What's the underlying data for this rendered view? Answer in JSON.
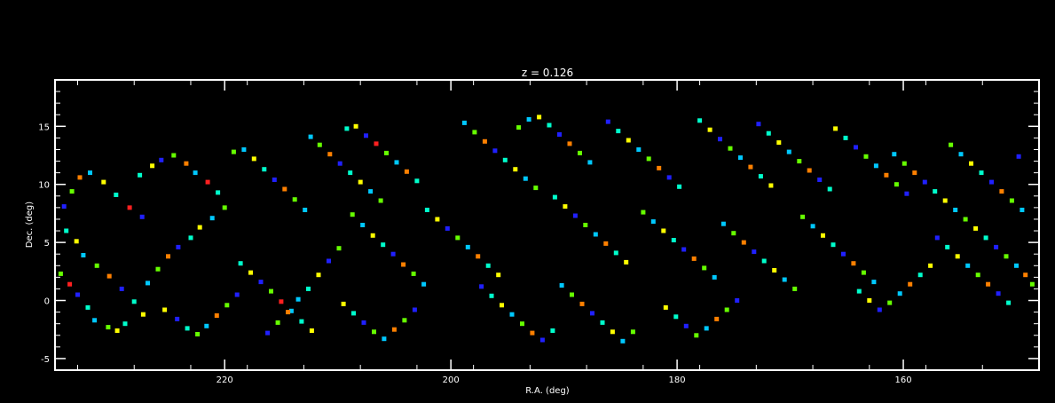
{
  "chart_data": {
    "type": "scatter",
    "title": "z = 0.126",
    "xlabel": "R.A. (deg)",
    "ylabel": "Dec. (deg)",
    "xlim": [
      235,
      148
    ],
    "ylim": [
      -6,
      19
    ],
    "x_ticks": [
      220,
      200,
      180,
      160
    ],
    "y_ticks": [
      -5,
      0,
      5,
      10,
      15
    ],
    "grid": false,
    "legend": "none",
    "background": "#000000",
    "axis_color": "#ffffff",
    "colormap": [
      "#2020ff",
      "#00c8ff",
      "#00ffcc",
      "#66ff00",
      "#ffff00",
      "#ff8000",
      "#ff2020",
      "#8000c0"
    ],
    "points": [
      [
        234.2,
        8.1,
        0
      ],
      [
        233.5,
        9.4,
        3
      ],
      [
        232.8,
        10.6,
        5
      ],
      [
        231.9,
        11.0,
        1
      ],
      [
        230.7,
        10.2,
        4
      ],
      [
        229.6,
        9.1,
        2
      ],
      [
        228.4,
        8.0,
        6
      ],
      [
        227.3,
        7.2,
        0
      ],
      [
        234.0,
        6.0,
        2
      ],
      [
        233.1,
        5.1,
        4
      ],
      [
        232.5,
        3.9,
        1
      ],
      [
        231.3,
        3.0,
        3
      ],
      [
        230.2,
        2.1,
        5
      ],
      [
        229.1,
        1.0,
        0
      ],
      [
        228.0,
        -0.1,
        2
      ],
      [
        227.2,
        -1.2,
        4
      ],
      [
        234.5,
        2.3,
        3
      ],
      [
        233.7,
        1.4,
        6
      ],
      [
        233.0,
        0.5,
        0
      ],
      [
        232.1,
        -0.6,
        2
      ],
      [
        231.5,
        -1.7,
        1
      ],
      [
        230.3,
        -2.3,
        3
      ],
      [
        229.5,
        -2.6,
        4
      ],
      [
        228.8,
        -2.0,
        2
      ],
      [
        226.8,
        1.5,
        1
      ],
      [
        225.9,
        2.7,
        3
      ],
      [
        225.0,
        3.8,
        5
      ],
      [
        224.1,
        4.6,
        0
      ],
      [
        223.0,
        5.4,
        2
      ],
      [
        222.2,
        6.3,
        4
      ],
      [
        221.1,
        7.1,
        1
      ],
      [
        220.0,
        8.0,
        3
      ],
      [
        227.5,
        10.8,
        2
      ],
      [
        226.4,
        11.6,
        4
      ],
      [
        225.6,
        12.1,
        0
      ],
      [
        224.5,
        12.5,
        3
      ],
      [
        223.4,
        11.8,
        5
      ],
      [
        222.6,
        11.0,
        1
      ],
      [
        221.5,
        10.2,
        6
      ],
      [
        220.6,
        9.3,
        2
      ],
      [
        225.3,
        -0.8,
        4
      ],
      [
        224.2,
        -1.6,
        0
      ],
      [
        223.3,
        -2.4,
        2
      ],
      [
        222.4,
        -2.9,
        3
      ],
      [
        221.6,
        -2.2,
        1
      ],
      [
        220.7,
        -1.3,
        5
      ],
      [
        219.8,
        -0.4,
        3
      ],
      [
        218.9,
        0.5,
        0
      ],
      [
        219.2,
        12.8,
        3
      ],
      [
        218.3,
        13.0,
        1
      ],
      [
        217.4,
        12.2,
        4
      ],
      [
        216.5,
        11.3,
        2
      ],
      [
        215.6,
        10.4,
        0
      ],
      [
        214.7,
        9.6,
        5
      ],
      [
        213.8,
        8.7,
        3
      ],
      [
        212.9,
        7.8,
        1
      ],
      [
        218.6,
        3.2,
        2
      ],
      [
        217.7,
        2.4,
        4
      ],
      [
        216.8,
        1.6,
        0
      ],
      [
        215.9,
        0.8,
        3
      ],
      [
        215.0,
        -0.1,
        6
      ],
      [
        214.1,
        -0.9,
        1
      ],
      [
        213.2,
        -1.8,
        2
      ],
      [
        212.3,
        -2.6,
        4
      ],
      [
        216.2,
        -2.8,
        0
      ],
      [
        215.3,
        -1.9,
        3
      ],
      [
        214.4,
        -1.0,
        5
      ],
      [
        213.5,
        0.1,
        1
      ],
      [
        212.6,
        1.0,
        2
      ],
      [
        211.7,
        2.2,
        4
      ],
      [
        210.8,
        3.4,
        0
      ],
      [
        209.9,
        4.5,
        3
      ],
      [
        212.4,
        14.1,
        1
      ],
      [
        211.6,
        13.4,
        3
      ],
      [
        210.7,
        12.6,
        5
      ],
      [
        209.8,
        11.8,
        0
      ],
      [
        208.9,
        11.0,
        2
      ],
      [
        208.0,
        10.2,
        4
      ],
      [
        207.1,
        9.4,
        1
      ],
      [
        206.2,
        8.6,
        3
      ],
      [
        209.2,
        14.8,
        2
      ],
      [
        208.4,
        15.0,
        4
      ],
      [
        207.5,
        14.2,
        0
      ],
      [
        206.6,
        13.5,
        6
      ],
      [
        205.7,
        12.7,
        3
      ],
      [
        204.8,
        11.9,
        1
      ],
      [
        203.9,
        11.1,
        5
      ],
      [
        203.0,
        10.3,
        2
      ],
      [
        208.7,
        7.4,
        3
      ],
      [
        207.8,
        6.5,
        1
      ],
      [
        206.9,
        5.6,
        4
      ],
      [
        206.0,
        4.8,
        2
      ],
      [
        205.1,
        4.0,
        0
      ],
      [
        204.2,
        3.1,
        5
      ],
      [
        203.3,
        2.3,
        3
      ],
      [
        202.4,
        1.4,
        1
      ],
      [
        209.5,
        -0.3,
        4
      ],
      [
        208.6,
        -1.1,
        2
      ],
      [
        207.7,
        -1.9,
        0
      ],
      [
        206.8,
        -2.7,
        3
      ],
      [
        205.9,
        -3.3,
        1
      ],
      [
        205.0,
        -2.5,
        5
      ],
      [
        204.1,
        -1.7,
        3
      ],
      [
        203.2,
        -0.8,
        0
      ],
      [
        202.1,
        7.8,
        2
      ],
      [
        201.2,
        7.0,
        4
      ],
      [
        200.3,
        6.2,
        0
      ],
      [
        199.4,
        5.4,
        3
      ],
      [
        198.5,
        4.6,
        1
      ],
      [
        197.6,
        3.8,
        5
      ],
      [
        196.7,
        3.0,
        2
      ],
      [
        195.8,
        2.2,
        4
      ],
      [
        198.8,
        15.3,
        1
      ],
      [
        197.9,
        14.5,
        3
      ],
      [
        197.0,
        13.7,
        5
      ],
      [
        196.1,
        12.9,
        0
      ],
      [
        195.2,
        12.1,
        2
      ],
      [
        194.3,
        11.3,
        4
      ],
      [
        193.4,
        10.5,
        1
      ],
      [
        192.5,
        9.7,
        3
      ],
      [
        197.3,
        1.2,
        0
      ],
      [
        196.4,
        0.4,
        2
      ],
      [
        195.5,
        -0.4,
        4
      ],
      [
        194.6,
        -1.2,
        1
      ],
      [
        193.7,
        -2.0,
        3
      ],
      [
        192.8,
        -2.8,
        5
      ],
      [
        191.9,
        -3.4,
        0
      ],
      [
        191.0,
        -2.6,
        2
      ],
      [
        194.0,
        14.9,
        3
      ],
      [
        193.1,
        15.6,
        1
      ],
      [
        192.2,
        15.8,
        4
      ],
      [
        191.3,
        15.1,
        2
      ],
      [
        190.4,
        14.3,
        0
      ],
      [
        189.5,
        13.5,
        5
      ],
      [
        188.6,
        12.7,
        3
      ],
      [
        187.7,
        11.9,
        1
      ],
      [
        190.8,
        8.9,
        2
      ],
      [
        189.9,
        8.1,
        4
      ],
      [
        189.0,
        7.3,
        0
      ],
      [
        188.1,
        6.5,
        3
      ],
      [
        187.2,
        5.7,
        1
      ],
      [
        186.3,
        4.9,
        5
      ],
      [
        185.4,
        4.1,
        2
      ],
      [
        184.5,
        3.3,
        4
      ],
      [
        190.2,
        1.3,
        1
      ],
      [
        189.3,
        0.5,
        3
      ],
      [
        188.4,
        -0.3,
        5
      ],
      [
        187.5,
        -1.1,
        0
      ],
      [
        186.6,
        -1.9,
        2
      ],
      [
        185.7,
        -2.7,
        4
      ],
      [
        184.8,
        -3.5,
        1
      ],
      [
        183.9,
        -2.7,
        3
      ],
      [
        186.1,
        15.4,
        0
      ],
      [
        185.2,
        14.6,
        2
      ],
      [
        184.3,
        13.8,
        4
      ],
      [
        183.4,
        13.0,
        1
      ],
      [
        182.5,
        12.2,
        3
      ],
      [
        181.6,
        11.4,
        5
      ],
      [
        180.7,
        10.6,
        0
      ],
      [
        179.8,
        9.8,
        2
      ],
      [
        183.0,
        7.6,
        3
      ],
      [
        182.1,
        6.8,
        1
      ],
      [
        181.2,
        6.0,
        4
      ],
      [
        180.3,
        5.2,
        2
      ],
      [
        179.4,
        4.4,
        0
      ],
      [
        178.5,
        3.6,
        5
      ],
      [
        177.6,
        2.8,
        3
      ],
      [
        176.7,
        2.0,
        1
      ],
      [
        181.0,
        -0.6,
        4
      ],
      [
        180.1,
        -1.4,
        2
      ],
      [
        179.2,
        -2.2,
        0
      ],
      [
        178.3,
        -3.0,
        3
      ],
      [
        177.4,
        -2.4,
        1
      ],
      [
        176.5,
        -1.6,
        5
      ],
      [
        175.6,
        -0.8,
        3
      ],
      [
        174.7,
        0.0,
        0
      ],
      [
        178.0,
        15.5,
        2
      ],
      [
        177.1,
        14.7,
        4
      ],
      [
        176.2,
        13.9,
        0
      ],
      [
        175.3,
        13.1,
        3
      ],
      [
        174.4,
        12.3,
        1
      ],
      [
        173.5,
        11.5,
        5
      ],
      [
        172.6,
        10.7,
        2
      ],
      [
        171.7,
        9.9,
        4
      ],
      [
        175.9,
        6.6,
        1
      ],
      [
        175.0,
        5.8,
        3
      ],
      [
        174.1,
        5.0,
        5
      ],
      [
        173.2,
        4.2,
        0
      ],
      [
        172.3,
        3.4,
        2
      ],
      [
        171.4,
        2.6,
        4
      ],
      [
        170.5,
        1.8,
        1
      ],
      [
        169.6,
        1.0,
        3
      ],
      [
        172.8,
        15.2,
        0
      ],
      [
        171.9,
        14.4,
        2
      ],
      [
        171.0,
        13.6,
        4
      ],
      [
        170.1,
        12.8,
        1
      ],
      [
        169.2,
        12.0,
        3
      ],
      [
        168.3,
        11.2,
        5
      ],
      [
        167.4,
        10.4,
        0
      ],
      [
        166.5,
        9.6,
        2
      ],
      [
        168.9,
        7.2,
        3
      ],
      [
        168.0,
        6.4,
        1
      ],
      [
        167.1,
        5.6,
        4
      ],
      [
        166.2,
        4.8,
        2
      ],
      [
        165.3,
        4.0,
        0
      ],
      [
        164.4,
        3.2,
        5
      ],
      [
        163.5,
        2.4,
        3
      ],
      [
        162.6,
        1.6,
        1
      ],
      [
        166.0,
        14.8,
        4
      ],
      [
        165.1,
        14.0,
        2
      ],
      [
        164.2,
        13.2,
        0
      ],
      [
        163.3,
        12.4,
        3
      ],
      [
        162.4,
        11.6,
        1
      ],
      [
        161.5,
        10.8,
        5
      ],
      [
        160.6,
        10.0,
        3
      ],
      [
        159.7,
        9.2,
        0
      ],
      [
        163.9,
        0.8,
        2
      ],
      [
        163.0,
        0.0,
        4
      ],
      [
        162.1,
        -0.8,
        0
      ],
      [
        161.2,
        -0.2,
        3
      ],
      [
        160.3,
        0.6,
        1
      ],
      [
        159.4,
        1.4,
        5
      ],
      [
        158.5,
        2.2,
        2
      ],
      [
        157.6,
        3.0,
        4
      ],
      [
        160.8,
        12.6,
        1
      ],
      [
        159.9,
        11.8,
        3
      ],
      [
        159.0,
        11.0,
        5
      ],
      [
        158.1,
        10.2,
        0
      ],
      [
        157.2,
        9.4,
        2
      ],
      [
        156.3,
        8.6,
        4
      ],
      [
        155.4,
        7.8,
        1
      ],
      [
        154.5,
        7.0,
        3
      ],
      [
        157.0,
        5.4,
        0
      ],
      [
        156.1,
        4.6,
        2
      ],
      [
        155.2,
        3.8,
        4
      ],
      [
        154.3,
        3.0,
        1
      ],
      [
        153.4,
        2.2,
        3
      ],
      [
        152.5,
        1.4,
        5
      ],
      [
        151.6,
        0.6,
        0
      ],
      [
        150.7,
        -0.2,
        2
      ],
      [
        155.8,
        13.4,
        3
      ],
      [
        154.9,
        12.6,
        1
      ],
      [
        154.0,
        11.8,
        4
      ],
      [
        153.1,
        11.0,
        2
      ],
      [
        152.2,
        10.2,
        0
      ],
      [
        151.3,
        9.4,
        5
      ],
      [
        150.4,
        8.6,
        3
      ],
      [
        149.5,
        7.8,
        1
      ],
      [
        153.6,
        6.2,
        4
      ],
      [
        152.7,
        5.4,
        2
      ],
      [
        151.8,
        4.6,
        0
      ],
      [
        150.9,
        3.8,
        3
      ],
      [
        150.0,
        3.0,
        1
      ],
      [
        149.2,
        2.2,
        5
      ],
      [
        148.6,
        1.4,
        3
      ],
      [
        149.8,
        12.4,
        0
      ]
    ]
  }
}
